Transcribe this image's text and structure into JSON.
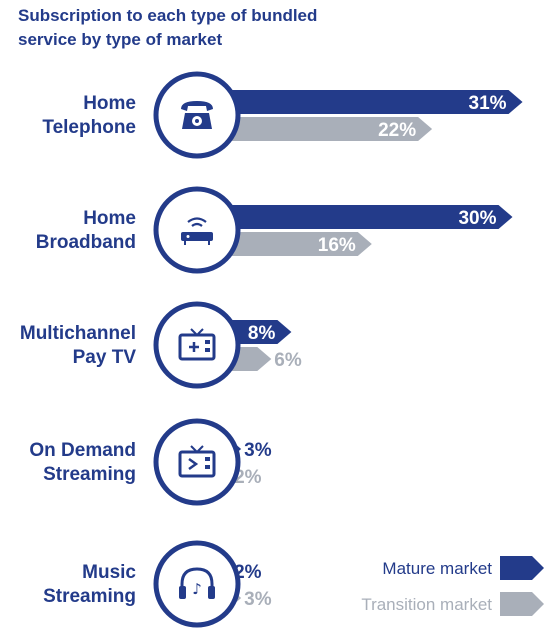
{
  "chart_data": {
    "type": "bar",
    "title_lines": [
      "Subscription to each type of bundled",
      "service by type of market"
    ],
    "categories": [
      [
        "Home",
        "Telephone"
      ],
      [
        "Home",
        "Broadband"
      ],
      [
        "Multichannel",
        "Pay TV"
      ],
      [
        "On Demand",
        "Streaming"
      ],
      [
        "Music",
        "Streaming"
      ]
    ],
    "icons": [
      "telephone-icon",
      "router-icon",
      "tv-plus-icon",
      "tv-play-icon",
      "headphones-icon"
    ],
    "series": [
      {
        "name": "Mature market",
        "values": [
          31,
          30,
          8,
          3,
          2
        ],
        "labels": [
          "31%",
          "30%",
          "8%",
          "3%",
          "2%"
        ]
      },
      {
        "name": "Transition market",
        "values": [
          22,
          16,
          6,
          2,
          3
        ],
        "labels": [
          "22%",
          "16%",
          "6%",
          "2%",
          "3%"
        ]
      }
    ],
    "legend_position": "bottom-right",
    "colors": {
      "mature": "#233b8a",
      "transition": "#a9afb9"
    }
  }
}
